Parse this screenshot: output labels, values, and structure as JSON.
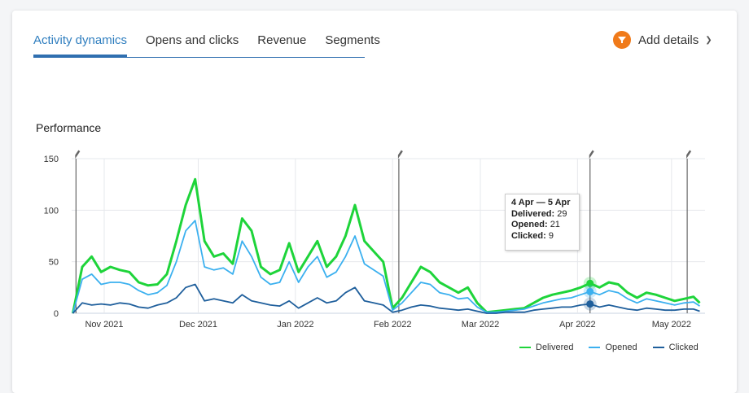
{
  "tabs": [
    {
      "label": "Activity dynamics",
      "active": true
    },
    {
      "label": "Opens and clicks"
    },
    {
      "label": "Revenue"
    },
    {
      "label": "Segments"
    }
  ],
  "add_details": {
    "label": "Add details",
    "icon": "filter-icon"
  },
  "tooltip": {
    "title": "4 Apr — 5 Apr",
    "rows": [
      {
        "label": "Delivered:",
        "value": "29"
      },
      {
        "label": "Opened:",
        "value": "21"
      },
      {
        "label": "Clicked:",
        "value": "9"
      }
    ]
  },
  "chart_data": {
    "type": "line",
    "title": "Performance",
    "ylim": [
      0,
      150
    ],
    "yticks": [
      0,
      50,
      100,
      150
    ],
    "xtick_labels": [
      "Nov 2021",
      "Dec 2021",
      "Jan 2022",
      "Feb 2022",
      "Mar 2022",
      "Apr 2022",
      "May 2022"
    ],
    "xtick_days": [
      10,
      40,
      71,
      102,
      130,
      161,
      191
    ],
    "x_start": "22 Oct 2021",
    "x_step_days": 3,
    "annotation_days": [
      1,
      104,
      165,
      196
    ],
    "highlight_index": 55,
    "series": [
      {
        "name": "Delivered",
        "color": "#1ed43a",
        "values": [
          0,
          45,
          55,
          40,
          45,
          42,
          40,
          30,
          27,
          28,
          38,
          70,
          105,
          130,
          70,
          55,
          58,
          48,
          92,
          80,
          45,
          38,
          42,
          68,
          40,
          55,
          70,
          45,
          55,
          75,
          105,
          70,
          60,
          50,
          5,
          15,
          30,
          45,
          40,
          30,
          25,
          20,
          25,
          10,
          1,
          2,
          3,
          4,
          5,
          10,
          15,
          18,
          20,
          22,
          25,
          29,
          25,
          30,
          28,
          20,
          15,
          20,
          18,
          15,
          12,
          14,
          16,
          10
        ]
      },
      {
        "name": "Opened",
        "color": "#3bb0ef",
        "values": [
          0,
          33,
          38,
          28,
          30,
          30,
          28,
          22,
          18,
          20,
          27,
          50,
          80,
          90,
          45,
          42,
          44,
          38,
          70,
          55,
          35,
          28,
          30,
          50,
          30,
          45,
          55,
          35,
          40,
          55,
          75,
          48,
          42,
          36,
          3,
          10,
          20,
          30,
          28,
          20,
          18,
          14,
          15,
          6,
          1,
          1,
          2,
          3,
          4,
          7,
          10,
          12,
          14,
          15,
          18,
          21,
          18,
          22,
          20,
          14,
          10,
          14,
          12,
          10,
          8,
          10,
          11,
          7
        ]
      },
      {
        "name": "Clicked",
        "color": "#1f5f9c",
        "values": [
          0,
          10,
          8,
          9,
          8,
          10,
          9,
          6,
          5,
          8,
          10,
          15,
          25,
          28,
          12,
          14,
          12,
          10,
          18,
          12,
          10,
          8,
          7,
          12,
          5,
          10,
          15,
          10,
          12,
          20,
          25,
          12,
          10,
          8,
          1,
          3,
          6,
          8,
          7,
          5,
          4,
          3,
          4,
          2,
          0,
          0,
          1,
          1,
          1,
          3,
          4,
          5,
          6,
          6,
          8,
          9,
          6,
          8,
          6,
          4,
          3,
          5,
          4,
          3,
          3,
          4,
          4,
          2
        ]
      }
    ]
  }
}
